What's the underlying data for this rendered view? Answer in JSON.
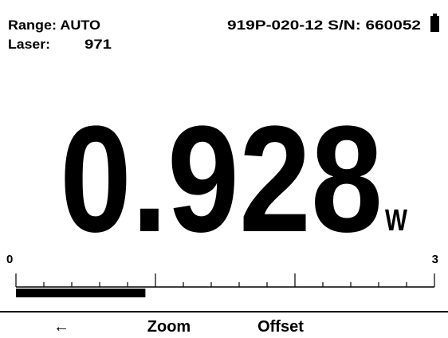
{
  "header": {
    "range": "Range: AUTO",
    "laser_label": "Laser:",
    "laser_value": "971",
    "device": "919P-020-12 S/N: 660052"
  },
  "reading": {
    "value": 0.928,
    "unit": "W"
  },
  "scale": {
    "min": 0,
    "max": 3
  },
  "softkeys": [
    "←",
    "Zoom",
    "Offset"
  ]
}
